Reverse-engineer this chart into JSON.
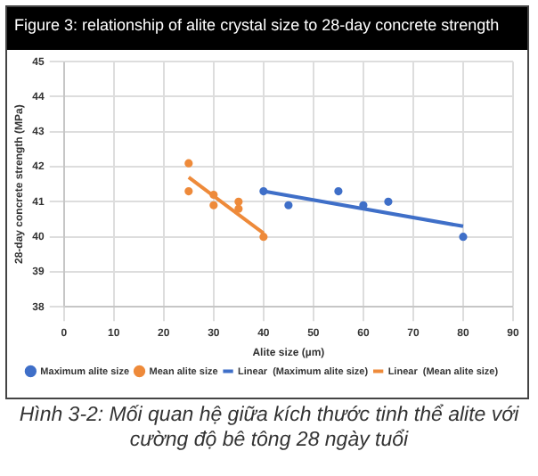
{
  "chart_data": {
    "type": "scatter",
    "title": "Figure 3: relationship of alite crystal size to 28-day concrete strength",
    "xlabel": "Alite size (µm)",
    "ylabel": "28-day concrete strength (MPa)",
    "xlim": [
      0,
      90
    ],
    "xticks": [
      0,
      10,
      20,
      30,
      40,
      50,
      60,
      70,
      80,
      90
    ],
    "ylim": [
      38,
      45
    ],
    "yticks": [
      38,
      39,
      40,
      41,
      42,
      43,
      44,
      45
    ],
    "grid": true,
    "legend": "bottom",
    "series": [
      {
        "name": "Maximum alite size",
        "color": "#3f6fc8",
        "marker": "circle",
        "x": [
          40,
          45,
          55,
          60,
          65,
          80
        ],
        "values": [
          41.3,
          40.9,
          41.3,
          40.9,
          41.0,
          40.0
        ]
      },
      {
        "name": "Mean alite size",
        "color": "#ee8a3a",
        "marker": "circle",
        "x": [
          25,
          25,
          30,
          30,
          35,
          35,
          40
        ],
        "values": [
          42.1,
          41.3,
          41.2,
          40.9,
          41.0,
          40.8,
          40.0
        ]
      },
      {
        "type": "line",
        "name": "Linear  (Maximum alite size)",
        "color": "#3f6fc8",
        "marker": "none",
        "x": [
          40,
          80
        ],
        "values": [
          41.3,
          40.3
        ]
      },
      {
        "type": "line",
        "name": "Linear  (Mean alite size)",
        "color": "#ee8a3a",
        "marker": "none",
        "x": [
          25,
          40
        ],
        "values": [
          41.7,
          40.1
        ]
      }
    ],
    "annotations": [
      "Hình 3-2: Mối quan hệ giữa kích thước tinh thể alite với cường độ bê tông 28 ngày tuổi"
    ]
  }
}
